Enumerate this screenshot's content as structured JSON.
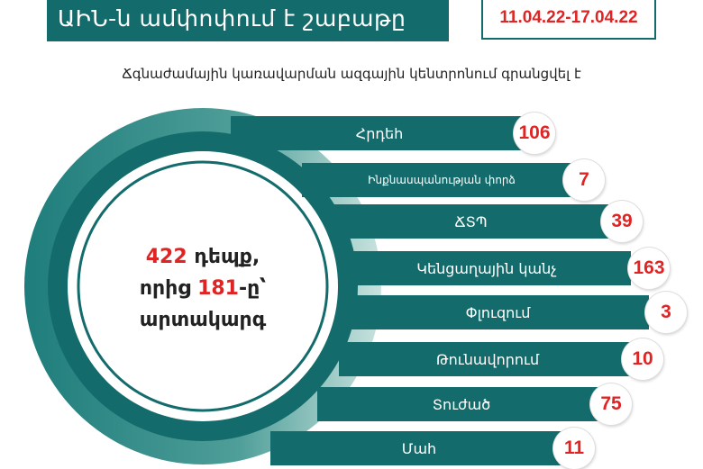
{
  "header": {
    "title": "ԱԻՆ-ն ամփոփում է շաբաթը",
    "date_range": "11.04.22-17.04.22",
    "subtitle": "Ճգնաժամային կառավարման ազգային կենտրոնում գրանցվել է"
  },
  "summary": {
    "total": "422",
    "total_suffix": " դեպք,",
    "from_prefix": "որից ",
    "outside": "181",
    "outside_suffix": "-ը՝",
    "outside_label": "արտակարգ"
  },
  "categories": [
    {
      "label": "Հրդեհ",
      "value": "106"
    },
    {
      "label": "Ինքնասպանության փորձ",
      "value": "7"
    },
    {
      "label": "ՃՏՊ",
      "value": "39"
    },
    {
      "label": "Կենցաղային կանչ",
      "value": "163"
    },
    {
      "label": "Փլուզում",
      "value": "3"
    },
    {
      "label": "Թունավորում",
      "value": "10"
    },
    {
      "label": "Տուժած",
      "value": "75"
    },
    {
      "label": "Մահ",
      "value": "11"
    }
  ],
  "colors": {
    "teal": "#146b6b",
    "light_teal": "#a7d0cb",
    "red": "#e02424"
  }
}
